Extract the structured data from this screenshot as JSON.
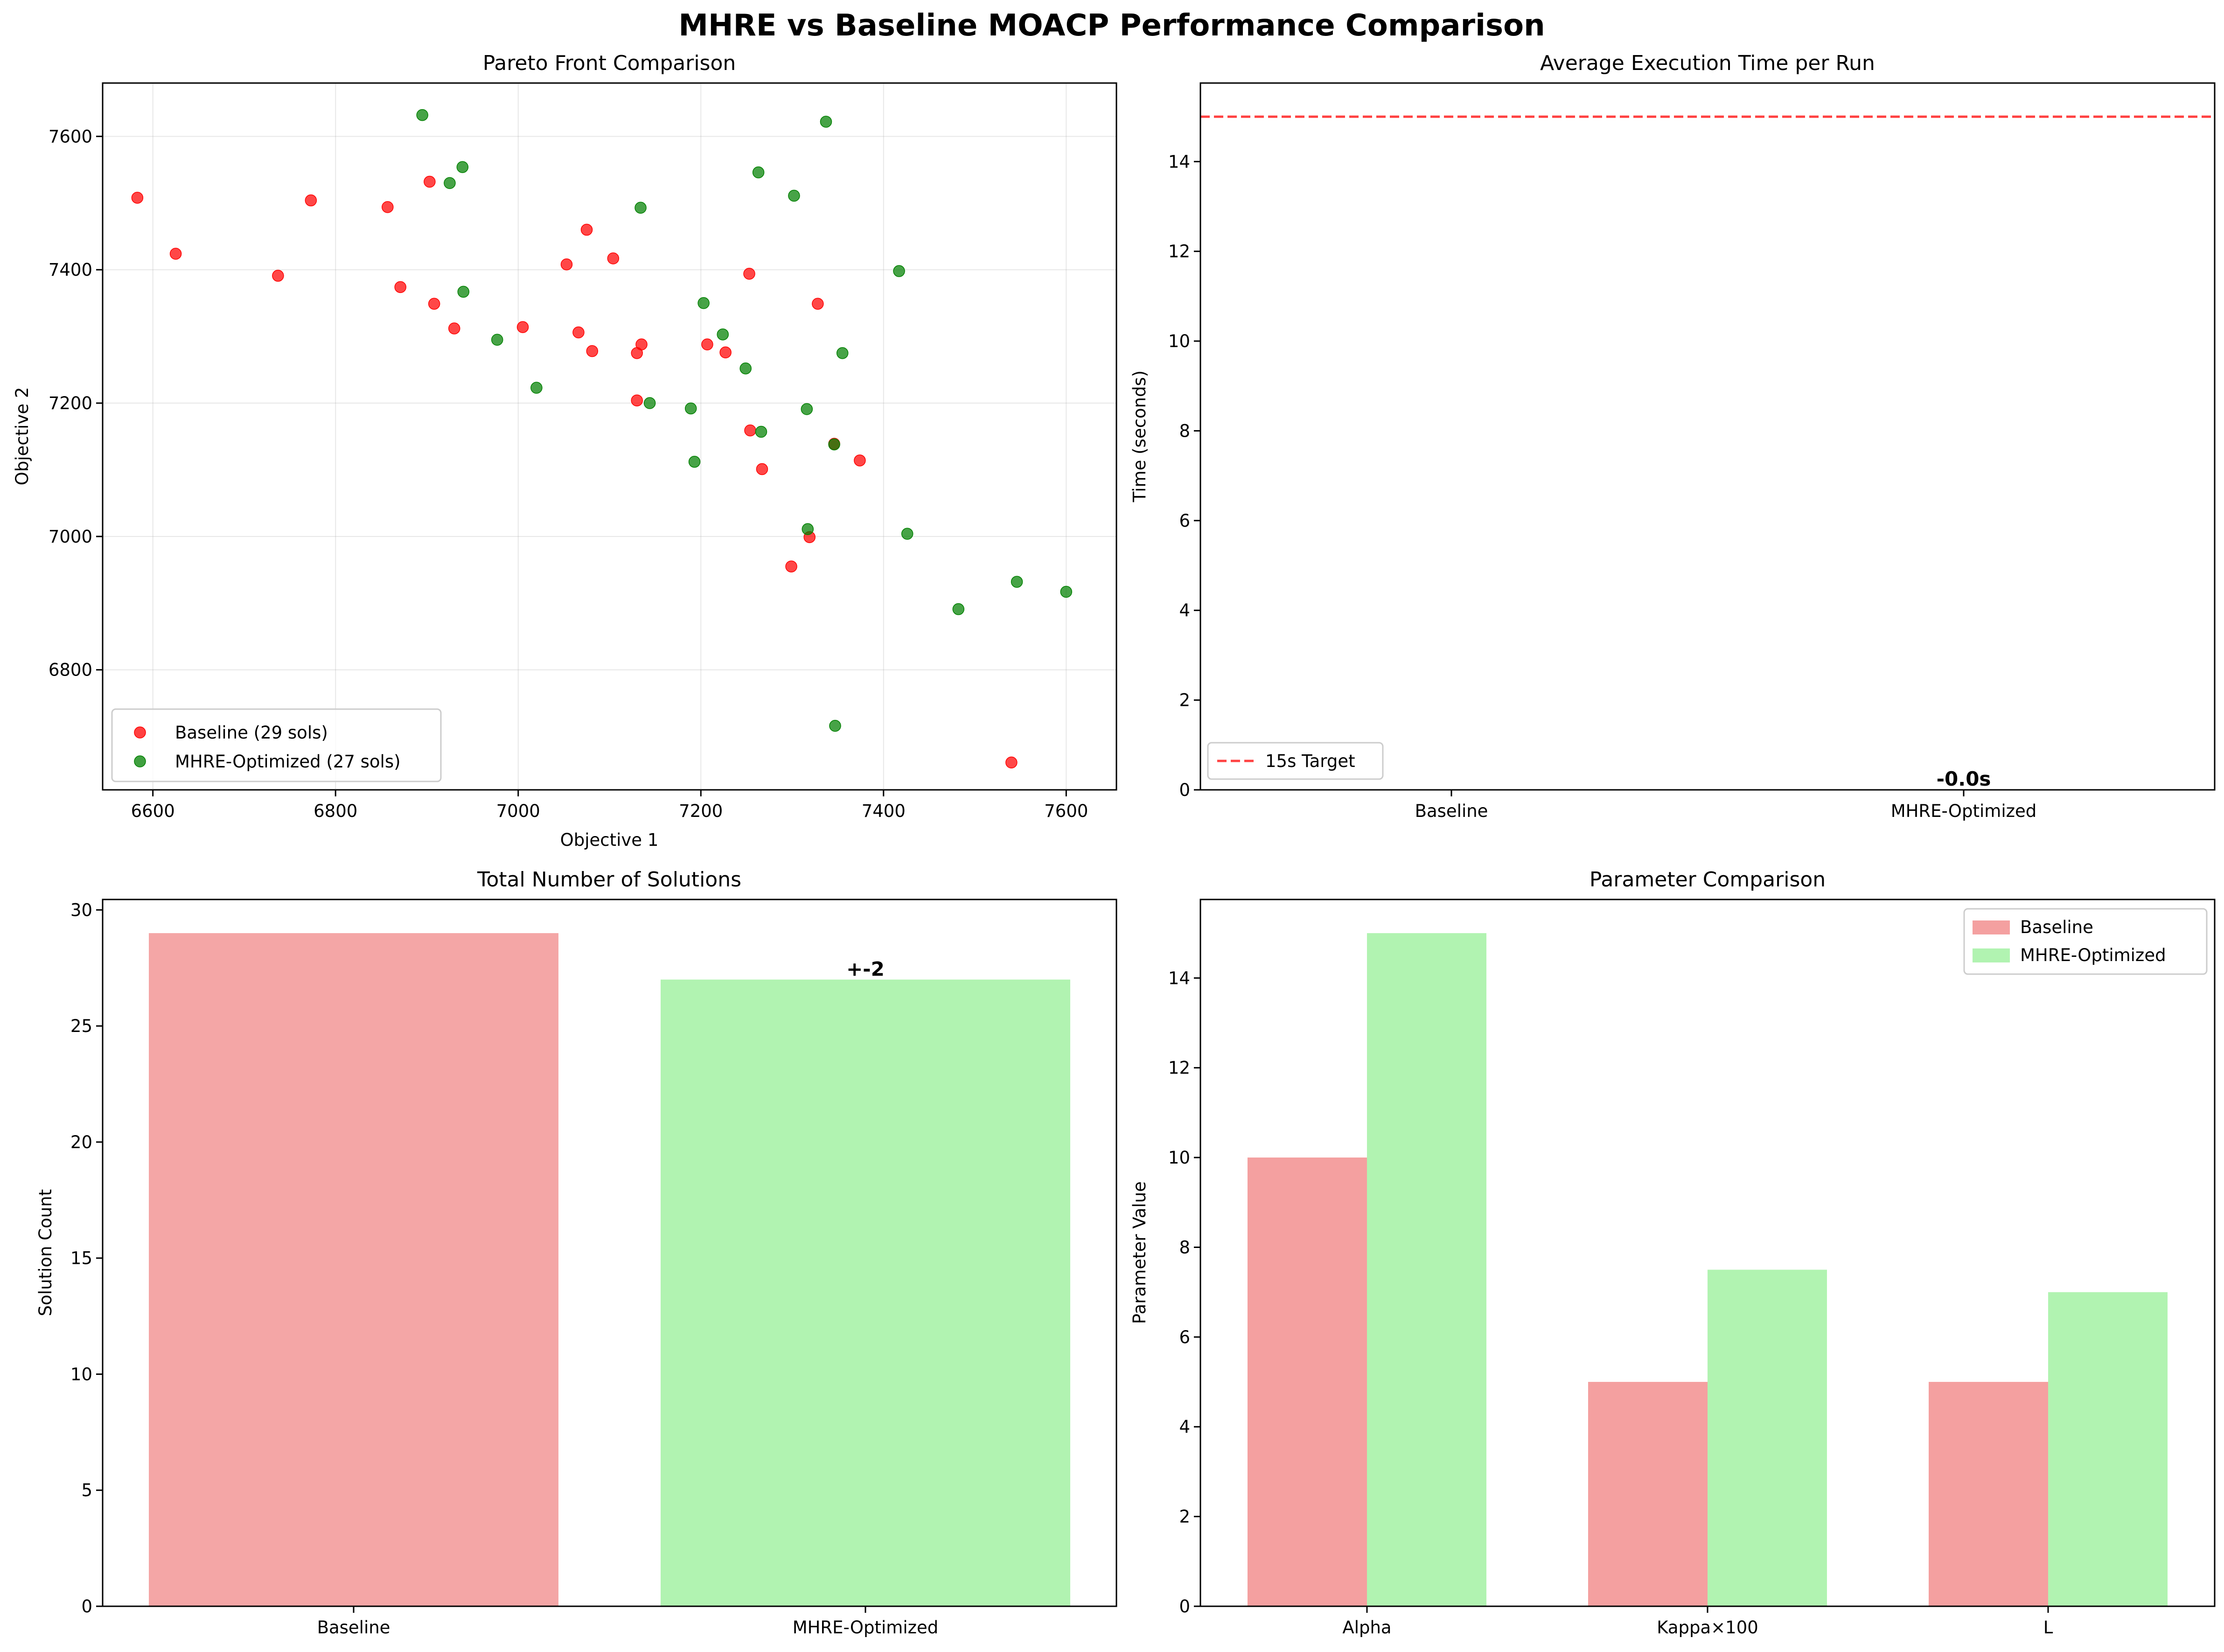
{
  "figure": {
    "title": "MHRE vs Baseline MOACP Performance Comparison"
  },
  "colors": {
    "baseline_point": "#ff0000",
    "mhre_point": "#008000",
    "baseline_bar": "#f08080",
    "mhre_bar": "#90ee90",
    "target_line": "#ff0000"
  },
  "chart_data": [
    {
      "id": "pareto",
      "type": "scatter",
      "title": "Pareto Front Comparison",
      "xlabel": "Objective 1",
      "ylabel": "Objective 2",
      "xlim": [
        6545,
        7655
      ],
      "ylim": [
        6620,
        7680
      ],
      "xticks": [
        6600,
        6800,
        7000,
        7200,
        7400,
        7600
      ],
      "yticks": [
        6800,
        7000,
        7200,
        7400,
        7600
      ],
      "grid": true,
      "legend_position": "lower-left",
      "series": [
        {
          "name": "Baseline (29 sols)",
          "color": "#ff0000",
          "points": [
            [
              6583,
              7508
            ],
            [
              6625,
              7424
            ],
            [
              6737,
              7391
            ],
            [
              6773,
              7504
            ],
            [
              6857,
              7494
            ],
            [
              6871,
              7374
            ],
            [
              6903,
              7532
            ],
            [
              6908,
              7349
            ],
            [
              6930,
              7312
            ],
            [
              7005,
              7314
            ],
            [
              7053,
              7408
            ],
            [
              7066,
              7306
            ],
            [
              7075,
              7460
            ],
            [
              7081,
              7278
            ],
            [
              7104,
              7417
            ],
            [
              7130,
              7275
            ],
            [
              7130,
              7204
            ],
            [
              7135,
              7288
            ],
            [
              7207,
              7288
            ],
            [
              7227,
              7276
            ],
            [
              7253,
              7394
            ],
            [
              7254,
              7159
            ],
            [
              7267,
              7101
            ],
            [
              7299,
              6955
            ],
            [
              7319,
              6999
            ],
            [
              7328,
              7349
            ],
            [
              7346,
              7139
            ],
            [
              7374,
              7114
            ],
            [
              7540,
              6661
            ]
          ]
        },
        {
          "name": "MHRE-Optimized (27 sols)",
          "color": "#008000",
          "points": [
            [
              6895,
              7632
            ],
            [
              6925,
              7530
            ],
            [
              6939,
              7554
            ],
            [
              6940,
              7367
            ],
            [
              6977,
              7295
            ],
            [
              7020,
              7223
            ],
            [
              7134,
              7493
            ],
            [
              7144,
              7200
            ],
            [
              7189,
              7192
            ],
            [
              7193,
              7112
            ],
            [
              7203,
              7350
            ],
            [
              7224,
              7303
            ],
            [
              7249,
              7252
            ],
            [
              7263,
              7546
            ],
            [
              7266,
              7157
            ],
            [
              7302,
              7511
            ],
            [
              7316,
              7191
            ],
            [
              7317,
              7011
            ],
            [
              7337,
              7622
            ],
            [
              7346,
              7138
            ],
            [
              7347,
              6716
            ],
            [
              7355,
              7275
            ],
            [
              7417,
              7398
            ],
            [
              7426,
              7004
            ],
            [
              7482,
              6891
            ],
            [
              7546,
              6932
            ],
            [
              7600,
              6917
            ]
          ]
        }
      ]
    },
    {
      "id": "exec",
      "type": "bar",
      "title": "Average Execution Time per Run",
      "ylabel": "Time (seconds)",
      "categories": [
        "Baseline",
        "MHRE-Optimized"
      ],
      "values": [
        0,
        0
      ],
      "ylim": [
        0,
        15.75
      ],
      "yticks": [
        0,
        2,
        4,
        6,
        8,
        10,
        12,
        14
      ],
      "target": 15,
      "target_label": "15s Target",
      "annotation": "-0.0s",
      "legend_position": "lower-left"
    },
    {
      "id": "solutions",
      "type": "bar",
      "title": "Total Number of Solutions",
      "ylabel": "Solution Count",
      "categories": [
        "Baseline",
        "MHRE-Optimized"
      ],
      "values": [
        29,
        27
      ],
      "ylim": [
        0,
        30.45
      ],
      "yticks": [
        0,
        5,
        10,
        15,
        20,
        25,
        30
      ],
      "annotation": "+-2"
    },
    {
      "id": "params",
      "type": "bar",
      "title": "Parameter Comparison",
      "ylabel": "Parameter Value",
      "categories": [
        "Alpha",
        "Kappa×100",
        "L"
      ],
      "ylim": [
        0,
        15.75
      ],
      "yticks": [
        0,
        2,
        4,
        6,
        8,
        10,
        12,
        14
      ],
      "legend_position": "top-right",
      "series": [
        {
          "name": "Baseline",
          "color": "#f08080",
          "values": [
            10,
            5,
            5
          ]
        },
        {
          "name": "MHRE-Optimized",
          "color": "#90ee90",
          "values": [
            15,
            7.5,
            7
          ]
        }
      ]
    }
  ]
}
